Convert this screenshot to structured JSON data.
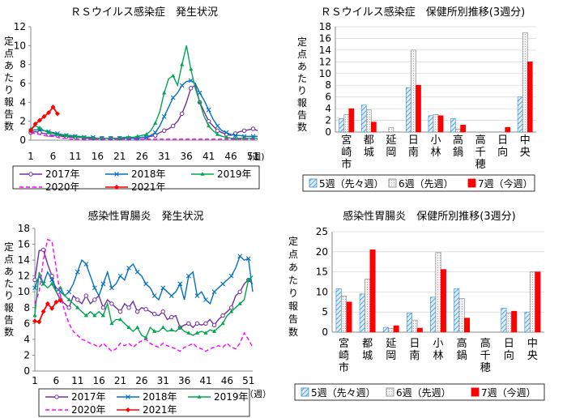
{
  "week_unit": "（週）",
  "week_unit_short": "(週)",
  "chart_data": [
    {
      "type": "line",
      "title": "ＲＳウイルス感染症　発生状況",
      "ylabel": "定点あたり報告数",
      "xlabel": "",
      "ylim": [
        0,
        12
      ],
      "yticks": [
        0,
        2,
        4,
        6,
        8,
        10,
        12
      ],
      "x_ticks": [
        1,
        6,
        11,
        16,
        21,
        26,
        31,
        36,
        41,
        46,
        51
      ],
      "grid": false,
      "legend_position": "bottom",
      "series": [
        {
          "name": "2017年",
          "color": "#7030a0",
          "dash": false,
          "marker": "circle",
          "values": [
            0.8,
            0.9,
            0.8,
            0.7,
            0.6,
            0.5,
            0.5,
            0.4,
            0.4,
            0.3,
            0.3,
            0.3,
            0.2,
            0.2,
            0.2,
            0.2,
            0.2,
            0.2,
            0.2,
            0.2,
            0.2,
            0.2,
            0.2,
            0.2,
            0.2,
            0.3,
            0.3,
            0.4,
            0.5,
            0.8,
            1.0,
            1.2,
            1.5,
            2.0,
            2.8,
            4.0,
            5.5,
            5.8,
            4.0,
            3.0,
            2.0,
            1.5,
            1.0,
            0.8,
            0.6,
            0.5,
            0.7,
            0.9,
            1.0,
            1.1,
            1.2,
            1.0
          ]
        },
        {
          "name": "2018年",
          "color": "#0070c0",
          "dash": false,
          "marker": "cross",
          "values": [
            1.0,
            1.1,
            1.1,
            1.0,
            0.9,
            0.8,
            0.7,
            0.6,
            0.5,
            0.5,
            0.4,
            0.4,
            0.3,
            0.3,
            0.3,
            0.2,
            0.2,
            0.2,
            0.2,
            0.2,
            0.2,
            0.2,
            0.2,
            0.2,
            0.2,
            0.3,
            0.3,
            0.5,
            0.8,
            1.5,
            2.5,
            3.5,
            4.5,
            5.0,
            5.8,
            6.2,
            6.3,
            6.0,
            5.0,
            4.2,
            3.2,
            2.2,
            1.5,
            1.0,
            0.8,
            0.6,
            0.5,
            0.5,
            0.4,
            0.4,
            0.4,
            0.4
          ]
        },
        {
          "name": "2019年",
          "color": "#00a651",
          "dash": false,
          "marker": "triangle",
          "values": [
            1.2,
            1.5,
            1.3,
            1.0,
            0.8,
            0.7,
            0.6,
            0.5,
            0.5,
            0.4,
            0.4,
            0.3,
            0.3,
            0.3,
            0.2,
            0.2,
            0.2,
            0.2,
            0.2,
            0.2,
            0.2,
            0.3,
            0.3,
            0.3,
            0.4,
            0.5,
            0.6,
            1.0,
            1.8,
            3.0,
            5.0,
            6.5,
            6.8,
            5.8,
            8.0,
            10.0,
            7.5,
            5.5,
            4.0,
            2.5,
            1.5,
            1.0,
            0.6,
            0.4,
            0.3,
            0.2,
            0.2,
            0.2,
            0.2,
            0.2,
            0.2,
            0.2
          ]
        },
        {
          "name": "2020年",
          "color": "#ff00ff",
          "dash": true,
          "marker": "none",
          "values": [
            0.8,
            0.7,
            0.6,
            0.5,
            0.4,
            0.4,
            0.3,
            0.2,
            0.2,
            0.1,
            0.1,
            0.1,
            0.1,
            0.1,
            0.1,
            0.1,
            0.1,
            0.1,
            0.1,
            0.1,
            0.1,
            0.1,
            0.1,
            0.1,
            0.1,
            0.1,
            0.1,
            0.1,
            0.1,
            0.1,
            0.1,
            0.1,
            0.1,
            0.1,
            0.1,
            0.1,
            0.1,
            0.1,
            0.1,
            0.1,
            0.1,
            0.1,
            0.1,
            0.1,
            0.1,
            0.1,
            0.1,
            0.1,
            0.1,
            0.1,
            0.1,
            0.1
          ]
        },
        {
          "name": "2021年",
          "color": "#ff0000",
          "dash": false,
          "marker": "diamond",
          "values": [
            1.0,
            1.7,
            2.1,
            2.5,
            2.9,
            3.5,
            2.8
          ]
        }
      ]
    },
    {
      "type": "bar",
      "title": "ＲＳウイルス感染症　保健所別推移(3週分)",
      "ylabel": "定点あたり報告数",
      "ylim": [
        0,
        18
      ],
      "yticks": [
        0,
        2,
        4,
        6,
        8,
        10,
        12,
        14,
        16,
        18
      ],
      "categories": [
        "宮崎市",
        "都城",
        "延岡",
        "日南",
        "小林",
        "高鍋",
        "高千穂",
        "日向",
        "中央"
      ],
      "legend_position": "bottom",
      "series": [
        {
          "name": "5週（先々週）",
          "color": "#4aa3df",
          "values": [
            2.3,
            4.6,
            0.0,
            7.6,
            2.8,
            2.3,
            0.0,
            0.0,
            6.0
          ]
        },
        {
          "name": "6週（先週）",
          "color": "#bfbfbf",
          "values": [
            3.0,
            3.8,
            0.8,
            14.0,
            3.0,
            0.5,
            0.0,
            0.0,
            17.0
          ]
        },
        {
          "name": "7週（今週）",
          "color": "#ff0000",
          "values": [
            4.0,
            1.7,
            0.0,
            8.0,
            2.8,
            1.2,
            0.0,
            0.8,
            12.0
          ]
        }
      ]
    },
    {
      "type": "line",
      "title": "感染性胃腸炎　発生状況",
      "ylabel": "定点あたり報告数",
      "xlabel": "",
      "ylim": [
        0,
        18
      ],
      "yticks": [
        0,
        2,
        4,
        6,
        8,
        10,
        12,
        14,
        16,
        18
      ],
      "x_ticks": [
        1,
        6,
        11,
        16,
        21,
        26,
        31,
        36,
        41,
        46,
        51
      ],
      "grid": false,
      "legend_position": "bottom",
      "series": [
        {
          "name": "2017年",
          "color": "#7030a0",
          "dash": false,
          "marker": "circle",
          "values": [
            11.5,
            15.2,
            15.3,
            13.5,
            12.0,
            10.0,
            9.0,
            8.5,
            8.0,
            9.5,
            9.0,
            8.5,
            9.5,
            8.5,
            9.0,
            9.5,
            8.0,
            9.0,
            8.5,
            8.0,
            7.5,
            8.5,
            8.0,
            8.8,
            7.5,
            8.0,
            7.8,
            7.5,
            7.2,
            7.0,
            7.5,
            6.5,
            6.8,
            7.0,
            5.5,
            5.8,
            6.0,
            5.5,
            6.0,
            5.8,
            6.0,
            6.5,
            5.8,
            6.5,
            7.0,
            7.5,
            8.0,
            9.5,
            10.0,
            11.0,
            11.5,
            11.0
          ]
        },
        {
          "name": "2018年",
          "color": "#0070c0",
          "dash": false,
          "marker": "cross",
          "values": [
            10.5,
            12.0,
            11.0,
            12.5,
            11.5,
            10.5,
            10.0,
            9.5,
            10.0,
            11.0,
            12.5,
            14.0,
            13.5,
            12.0,
            10.5,
            9.5,
            11.0,
            12.5,
            10.5,
            11.0,
            12.0,
            11.5,
            13.0,
            13.5,
            12.5,
            12.0,
            11.0,
            10.5,
            9.5,
            9.0,
            10.5,
            10.0,
            9.5,
            10.0,
            11.0,
            9.0,
            12.0,
            12.5,
            9.5,
            10.0,
            9.0,
            8.5,
            10.0,
            10.5,
            11.0,
            11.5,
            12.0,
            13.0,
            14.5,
            14.0,
            14.2,
            10.0
          ]
        },
        {
          "name": "2019年",
          "color": "#00a651",
          "dash": false,
          "marker": "triangle",
          "values": [
            7.0,
            12.5,
            11.0,
            10.5,
            11.0,
            10.0,
            10.5,
            9.5,
            9.0,
            8.5,
            8.0,
            7.5,
            7.0,
            7.5,
            7.0,
            7.5,
            7.0,
            8.5,
            6.0,
            6.5,
            6.5,
            6.0,
            5.5,
            5.0,
            5.5,
            4.5,
            4.2,
            5.5,
            5.0,
            5.0,
            5.5,
            5.0,
            5.2,
            5.0,
            5.5,
            5.0,
            4.8,
            4.5,
            4.8,
            5.0,
            4.8,
            5.2,
            5.0,
            5.5,
            6.0,
            7.0,
            7.5,
            8.0,
            8.5,
            9.0,
            11.5,
            12.0
          ]
        },
        {
          "name": "2020年",
          "color": "#ff00ff",
          "dash": true,
          "marker": "none",
          "values": [
            8.5,
            10.0,
            14.0,
            16.6,
            16.4,
            13.0,
            9.5,
            7.5,
            6.0,
            5.0,
            4.5,
            4.0,
            3.8,
            3.5,
            3.3,
            3.0,
            3.5,
            3.0,
            2.5,
            2.8,
            3.5,
            3.2,
            3.5,
            3.0,
            3.5,
            3.8,
            4.0,
            3.5,
            3.2,
            3.0,
            3.5,
            3.2,
            3.0,
            2.8,
            2.5,
            3.0,
            3.2,
            3.5,
            3.0,
            2.8,
            2.5,
            2.8,
            3.0,
            3.2,
            3.0,
            3.5,
            3.0,
            2.8,
            3.5,
            4.8,
            4.0,
            3.0
          ]
        },
        {
          "name": "2021年",
          "color": "#ff0000",
          "dash": false,
          "marker": "diamond",
          "values": [
            6.3,
            6.2,
            7.5,
            8.5,
            7.9,
            8.7,
            8.9
          ]
        }
      ]
    },
    {
      "type": "bar",
      "title": "感染性胃腸炎　保健所別推移(3週分)",
      "ylabel": "定点あたり報告数",
      "ylim": [
        0,
        25
      ],
      "yticks": [
        0,
        5,
        10,
        15,
        20,
        25
      ],
      "categories": [
        "宮崎市",
        "都城",
        "延岡",
        "日南",
        "小林",
        "高鍋",
        "高千穂",
        "日向",
        "中央"
      ],
      "legend_position": "bottom",
      "series": [
        {
          "name": "5週（先々週）",
          "color": "#4aa3df",
          "values": [
            10.8,
            9.5,
            1.2,
            4.8,
            8.7,
            10.8,
            0.0,
            6.0,
            5.0
          ]
        },
        {
          "name": "6週（先週）",
          "color": "#bfbfbf",
          "values": [
            9.0,
            13.2,
            0.9,
            3.0,
            19.8,
            8.4,
            0.0,
            4.8,
            15.0
          ]
        },
        {
          "name": "7週（今週）",
          "color": "#ff0000",
          "values": [
            7.5,
            20.5,
            1.6,
            1.0,
            15.6,
            3.5,
            0.0,
            5.2,
            15.0
          ]
        }
      ]
    }
  ]
}
